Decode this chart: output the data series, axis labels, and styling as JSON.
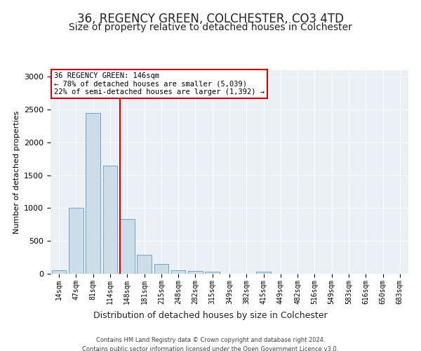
{
  "title": "36, REGENCY GREEN, COLCHESTER, CO3 4TD",
  "subtitle": "Size of property relative to detached houses in Colchester",
  "xlabel": "Distribution of detached houses by size in Colchester",
  "ylabel": "Number of detached properties",
  "categories": [
    "14sqm",
    "47sqm",
    "81sqm",
    "114sqm",
    "148sqm",
    "181sqm",
    "215sqm",
    "248sqm",
    "282sqm",
    "315sqm",
    "349sqm",
    "382sqm",
    "415sqm",
    "449sqm",
    "482sqm",
    "516sqm",
    "549sqm",
    "583sqm",
    "616sqm",
    "650sqm",
    "683sqm"
  ],
  "values": [
    55,
    1000,
    2450,
    1650,
    830,
    290,
    150,
    55,
    40,
    30,
    0,
    0,
    30,
    0,
    0,
    0,
    0,
    0,
    0,
    0,
    0
  ],
  "bar_color": "#ccdce8",
  "bar_edge_color": "#6699bb",
  "vline_color": "#cc0000",
  "annotation_text": "36 REGENCY GREEN: 146sqm\n← 78% of detached houses are smaller (5,039)\n22% of semi-detached houses are larger (1,392) →",
  "annotation_box_color": "#ffffff",
  "annotation_box_edge": "#cc0000",
  "ylim": [
    0,
    3100
  ],
  "footer_line1": "Contains HM Land Registry data © Crown copyright and database right 2024.",
  "footer_line2": "Contains public sector information licensed under the Open Government Licence v3.0.",
  "background_color": "#eaf0f6",
  "title_fontsize": 12,
  "subtitle_fontsize": 10,
  "tick_fontsize": 7,
  "ylabel_fontsize": 8,
  "xlabel_fontsize": 9,
  "footer_fontsize": 6,
  "annotation_fontsize": 7.5
}
